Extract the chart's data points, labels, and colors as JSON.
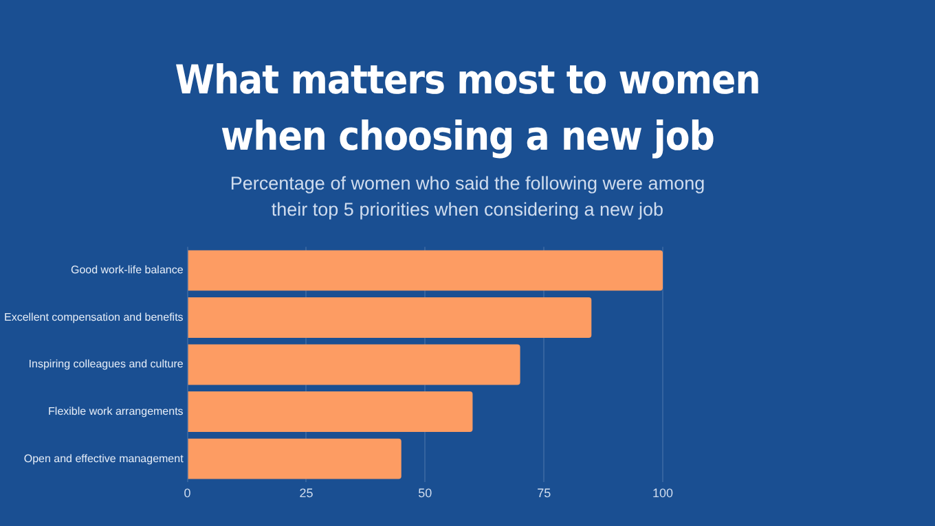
{
  "chart_data": {
    "type": "bar",
    "orientation": "horizontal",
    "title": "What matters most to women when choosing a new job",
    "subtitle": "Percentage of women who said the following were among their top 5 priorities when considering a new job",
    "categories": [
      "Good work-life balance",
      "Excellent compensation and benefits",
      "Inspiring colleagues and culture",
      "Flexible work arrangements",
      "Open and effective management"
    ],
    "values": [
      100,
      85,
      70,
      60,
      45
    ],
    "color": "#fd9c63",
    "xlim": [
      0,
      100
    ],
    "xticks": [
      0,
      25,
      50,
      75,
      100
    ],
    "grid": "x"
  }
}
